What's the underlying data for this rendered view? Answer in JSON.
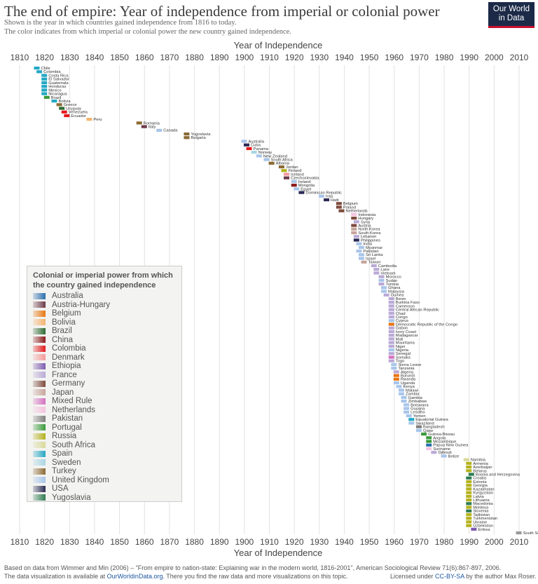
{
  "title": "The end of empire: Year of independence from imperial or colonial power",
  "subtitle_lines": [
    "Shown is the year in which countries gained independence from 1816 to today.",
    "The color indicates from which imperial or colonial power the new country gained independence."
  ],
  "logo": {
    "line1": "Our World",
    "line2": "in Data"
  },
  "footer": {
    "source": "Based on data from Wimmer and Min (2006) – \"From empire to nation-state: Explaining war in the modern world, 1816-2001\", American Sociological Review 71(6):867-897, 2006.",
    "available_prefix": "The data visualization is available at ",
    "site": "OurWorldinData.org",
    "available_suffix": ". There you find the raw data and more visualizations on this topic.",
    "license_prefix": "Licensed under ",
    "license": "CC-BY-SA",
    "license_suffix": " by the author Max Roser."
  },
  "chart_data": {
    "type": "scatter",
    "title": "The end of empire: Year of independence from imperial or colonial power",
    "xlabel": "Year of Independence",
    "xlim": [
      1810,
      2013
    ],
    "xticks": [
      1810,
      1820,
      1830,
      1840,
      1850,
      1860,
      1870,
      1880,
      1890,
      1900,
      1910,
      1920,
      1930,
      1940,
      1950,
      1960,
      1970,
      1980,
      1990,
      2000,
      2010
    ],
    "grid": true,
    "legend_title": "Colonial or imperial power from which the country gained independence",
    "legend_placement": "left",
    "powers": [
      {
        "name": "Australia",
        "color": "#2b6fae"
      },
      {
        "name": "Austria-Hungary",
        "color": "#6d3b4a"
      },
      {
        "name": "Belgium",
        "color": "#e8760f"
      },
      {
        "name": "Bolivia",
        "color": "#f5b46e"
      },
      {
        "name": "Brazil",
        "color": "#2e6b30"
      },
      {
        "name": "China",
        "color": "#8b1a1a"
      },
      {
        "name": "Colombia",
        "color": "#e31a1c"
      },
      {
        "name": "Denmark",
        "color": "#f39a9a"
      },
      {
        "name": "Ethiopia",
        "color": "#7d5bb0"
      },
      {
        "name": "France",
        "color": "#b9a9d6"
      },
      {
        "name": "Germany",
        "color": "#7e4a3b"
      },
      {
        "name": "Japan",
        "color": "#c7a49b"
      },
      {
        "name": "Mixed Rule",
        "color": "#d46fc0"
      },
      {
        "name": "Netherlands",
        "color": "#f4c2de"
      },
      {
        "name": "Pakistan",
        "color": "#7f7f7f"
      },
      {
        "name": "Portugal",
        "color": "#3a9a3a"
      },
      {
        "name": "Russia",
        "color": "#b5b21c"
      },
      {
        "name": "South Africa",
        "color": "#d9d99a"
      },
      {
        "name": "Spain",
        "color": "#23a8c4"
      },
      {
        "name": "Sweden",
        "color": "#a7d6e2"
      },
      {
        "name": "Turkey",
        "color": "#8a6a34"
      },
      {
        "name": "United Kingdom",
        "color": "#a7c5ea"
      },
      {
        "name": "USA",
        "color": "#2a2a55"
      },
      {
        "name": "Yugoslavia",
        "color": "#2e7b52"
      }
    ],
    "countries": [
      {
        "name": "Chile",
        "year": 1818,
        "power": "Spain"
      },
      {
        "name": "Colombia",
        "year": 1819,
        "power": "Spain"
      },
      {
        "name": "Costa Rica",
        "year": 1821,
        "power": "Spain"
      },
      {
        "name": "El Salvador",
        "year": 1821,
        "power": "Spain"
      },
      {
        "name": "Guatemala",
        "year": 1821,
        "power": "Spain"
      },
      {
        "name": "Honduras",
        "year": 1821,
        "power": "Spain"
      },
      {
        "name": "Mexico",
        "year": 1821,
        "power": "Spain"
      },
      {
        "name": "Nicaragua",
        "year": 1821,
        "power": "Spain"
      },
      {
        "name": "Brazil",
        "year": 1822,
        "power": "Portugal"
      },
      {
        "name": "Bolivia",
        "year": 1825,
        "power": "Spain"
      },
      {
        "name": "Greece",
        "year": 1827,
        "power": "Turkey"
      },
      {
        "name": "Uruguay",
        "year": 1828,
        "power": "Brazil"
      },
      {
        "name": "Venezuela",
        "year": 1829,
        "power": "Colombia"
      },
      {
        "name": "Ecuador",
        "year": 1830,
        "power": "Colombia"
      },
      {
        "name": "Peru",
        "year": 1839,
        "power": "Bolivia"
      },
      {
        "name": "Romania",
        "year": 1859,
        "power": "Turkey"
      },
      {
        "name": "Italy",
        "year": 1861,
        "power": "Austria-Hungary"
      },
      {
        "name": "Canada",
        "year": 1867,
        "power": "United Kingdom"
      },
      {
        "name": "Yugoslavia",
        "year": 1878,
        "power": "Turkey"
      },
      {
        "name": "Bulgaria",
        "year": 1878,
        "power": "Turkey"
      },
      {
        "name": "Australia",
        "year": 1901,
        "power": "United Kingdom"
      },
      {
        "name": "Cuba",
        "year": 1902,
        "power": "USA"
      },
      {
        "name": "Panama",
        "year": 1903,
        "power": "Colombia"
      },
      {
        "name": "Norway",
        "year": 1905,
        "power": "Sweden"
      },
      {
        "name": "New Zealand",
        "year": 1907,
        "power": "United Kingdom"
      },
      {
        "name": "South Africa",
        "year": 1910,
        "power": "United Kingdom"
      },
      {
        "name": "Albania",
        "year": 1912,
        "power": "Turkey"
      },
      {
        "name": "Jordan",
        "year": 1916,
        "power": "Turkey"
      },
      {
        "name": "Finland",
        "year": 1917,
        "power": "Russia"
      },
      {
        "name": "Iceland",
        "year": 1918,
        "power": "Denmark"
      },
      {
        "name": "Czechoslovakia",
        "year": 1918,
        "power": "Austria-Hungary"
      },
      {
        "name": "Ireland",
        "year": 1921,
        "power": "United Kingdom"
      },
      {
        "name": "Mongolia",
        "year": 1921,
        "power": "China"
      },
      {
        "name": "Egypt",
        "year": 1922,
        "power": "United Kingdom"
      },
      {
        "name": "Dominican Republic",
        "year": 1924,
        "power": "USA"
      },
      {
        "name": "Iraq",
        "year": 1932,
        "power": "United Kingdom"
      },
      {
        "name": "Haiti",
        "year": 1934,
        "power": "USA"
      },
      {
        "name": "Belgium",
        "year": 1939,
        "power": "Germany"
      },
      {
        "name": "Poland",
        "year": 1939,
        "power": "Germany"
      },
      {
        "name": "Netherlands",
        "year": 1940,
        "power": "Germany"
      },
      {
        "name": "Indonesia",
        "year": 1945,
        "power": "Netherlands"
      },
      {
        "name": "Hungary",
        "year": 1945,
        "power": "Germany"
      },
      {
        "name": "Syria",
        "year": 1946,
        "power": "France"
      },
      {
        "name": "Austria",
        "year": 1945,
        "power": "Germany"
      },
      {
        "name": "North Korea",
        "year": 1945,
        "power": "Japan"
      },
      {
        "name": "South Korea",
        "year": 1945,
        "power": "Japan"
      },
      {
        "name": "Lebanon",
        "year": 1946,
        "power": "France"
      },
      {
        "name": "Philippines",
        "year": 1946,
        "power": "USA"
      },
      {
        "name": "India",
        "year": 1947,
        "power": "United Kingdom"
      },
      {
        "name": "Myanmar",
        "year": 1948,
        "power": "United Kingdom"
      },
      {
        "name": "Pakistan",
        "year": 1947,
        "power": "United Kingdom"
      },
      {
        "name": "Sri Lanka",
        "year": 1948,
        "power": "United Kingdom"
      },
      {
        "name": "Israel",
        "year": 1948,
        "power": "United Kingdom"
      },
      {
        "name": "Taiwan",
        "year": 1949,
        "power": "Japan"
      },
      {
        "name": "Cambodia",
        "year": 1953,
        "power": "France"
      },
      {
        "name": "Laos",
        "year": 1954,
        "power": "France"
      },
      {
        "name": "Vietnam",
        "year": 1954,
        "power": "France"
      },
      {
        "name": "Morocco",
        "year": 1956,
        "power": "France"
      },
      {
        "name": "Sudan",
        "year": 1956,
        "power": "United Kingdom"
      },
      {
        "name": "Tunisia",
        "year": 1956,
        "power": "France"
      },
      {
        "name": "Ghana",
        "year": 1957,
        "power": "United Kingdom"
      },
      {
        "name": "Malaysia",
        "year": 1957,
        "power": "United Kingdom"
      },
      {
        "name": "Guinea",
        "year": 1958,
        "power": "France"
      },
      {
        "name": "Benin",
        "year": 1960,
        "power": "France"
      },
      {
        "name": "Burkina Faso",
        "year": 1960,
        "power": "France"
      },
      {
        "name": "Cameroon",
        "year": 1960,
        "power": "France"
      },
      {
        "name": "Central African Republic",
        "year": 1960,
        "power": "France"
      },
      {
        "name": "Chad",
        "year": 1960,
        "power": "France"
      },
      {
        "name": "Congo",
        "year": 1960,
        "power": "France"
      },
      {
        "name": "Cyprus",
        "year": 1960,
        "power": "United Kingdom"
      },
      {
        "name": "Democratic Republic of the Congo",
        "year": 1960,
        "power": "Belgium"
      },
      {
        "name": "Gabon",
        "year": 1960,
        "power": "France"
      },
      {
        "name": "Ivory Coast",
        "year": 1960,
        "power": "France"
      },
      {
        "name": "Madagascar",
        "year": 1960,
        "power": "France"
      },
      {
        "name": "Mali",
        "year": 1960,
        "power": "France"
      },
      {
        "name": "Mauritania",
        "year": 1960,
        "power": "France"
      },
      {
        "name": "Niger",
        "year": 1960,
        "power": "France"
      },
      {
        "name": "Nigeria",
        "year": 1960,
        "power": "United Kingdom"
      },
      {
        "name": "Senegal",
        "year": 1960,
        "power": "France"
      },
      {
        "name": "Somalia",
        "year": 1960,
        "power": "Mixed Rule"
      },
      {
        "name": "Togo",
        "year": 1960,
        "power": "France"
      },
      {
        "name": "Sierra Leone",
        "year": 1961,
        "power": "United Kingdom"
      },
      {
        "name": "Tanzania",
        "year": 1961,
        "power": "United Kingdom"
      },
      {
        "name": "Algeria",
        "year": 1962,
        "power": "France"
      },
      {
        "name": "Burundi",
        "year": 1962,
        "power": "Belgium"
      },
      {
        "name": "Rwanda",
        "year": 1962,
        "power": "Belgium"
      },
      {
        "name": "Uganda",
        "year": 1962,
        "power": "United Kingdom"
      },
      {
        "name": "Kenya",
        "year": 1963,
        "power": "United Kingdom"
      },
      {
        "name": "Malawi",
        "year": 1964,
        "power": "United Kingdom"
      },
      {
        "name": "Zambia",
        "year": 1964,
        "power": "United Kingdom"
      },
      {
        "name": "Gambia",
        "year": 1965,
        "power": "United Kingdom"
      },
      {
        "name": "Zimbabwe",
        "year": 1965,
        "power": "United Kingdom"
      },
      {
        "name": "Botswana",
        "year": 1966,
        "power": "United Kingdom"
      },
      {
        "name": "Guyana",
        "year": 1966,
        "power": "United Kingdom"
      },
      {
        "name": "Lesotho",
        "year": 1966,
        "power": "United Kingdom"
      },
      {
        "name": "Yemen",
        "year": 1967,
        "power": "United Kingdom"
      },
      {
        "name": "Equatorial Guinea",
        "year": 1968,
        "power": "Spain"
      },
      {
        "name": "Swaziland",
        "year": 1968,
        "power": "United Kingdom"
      },
      {
        "name": "Bangladesh",
        "year": 1971,
        "power": "Pakistan"
      },
      {
        "name": "Qatar",
        "year": 1971,
        "power": "United Kingdom"
      },
      {
        "name": "Guinea-Bissau",
        "year": 1973,
        "power": "Portugal"
      },
      {
        "name": "Angola",
        "year": 1975,
        "power": "Portugal"
      },
      {
        "name": "Mozambique",
        "year": 1975,
        "power": "Portugal"
      },
      {
        "name": "Papua New Guinea",
        "year": 1975,
        "power": "Australia"
      },
      {
        "name": "Suriname",
        "year": 1975,
        "power": "Netherlands"
      },
      {
        "name": "Djibouti",
        "year": 1977,
        "power": "France"
      },
      {
        "name": "Belize",
        "year": 1981,
        "power": "United Kingdom"
      },
      {
        "name": "Namibia",
        "year": 1990,
        "power": "South Africa"
      },
      {
        "name": "Armenia",
        "year": 1991,
        "power": "Russia"
      },
      {
        "name": "Azerbaijan",
        "year": 1991,
        "power": "Russia"
      },
      {
        "name": "Belarus",
        "year": 1991,
        "power": "Russia"
      },
      {
        "name": "Bosnia and Herzegovina",
        "year": 1992,
        "power": "Yugoslavia"
      },
      {
        "name": "Croatia",
        "year": 1991,
        "power": "Yugoslavia"
      },
      {
        "name": "Estonia",
        "year": 1991,
        "power": "Russia"
      },
      {
        "name": "Georgia",
        "year": 1991,
        "power": "Russia"
      },
      {
        "name": "Kazakhstan",
        "year": 1991,
        "power": "Russia"
      },
      {
        "name": "Kyrgyzstan",
        "year": 1991,
        "power": "Russia"
      },
      {
        "name": "Latvia",
        "year": 1991,
        "power": "Russia"
      },
      {
        "name": "Lithuania",
        "year": 1991,
        "power": "Russia"
      },
      {
        "name": "Macedonia",
        "year": 1991,
        "power": "Yugoslavia"
      },
      {
        "name": "Moldova",
        "year": 1991,
        "power": "Russia"
      },
      {
        "name": "Slovenia",
        "year": 1991,
        "power": "Yugoslavia"
      },
      {
        "name": "Tajikistan",
        "year": 1991,
        "power": "Russia"
      },
      {
        "name": "Turkmenistan",
        "year": 1991,
        "power": "Russia"
      },
      {
        "name": "Ukraine",
        "year": 1991,
        "power": "Russia"
      },
      {
        "name": "Uzbekistan",
        "year": 1991,
        "power": "Russia"
      },
      {
        "name": "Eritrea",
        "year": 1993,
        "power": "Ethiopia"
      },
      {
        "name": "South Sudan",
        "year": 2011,
        "power": "Sudan"
      }
    ]
  }
}
